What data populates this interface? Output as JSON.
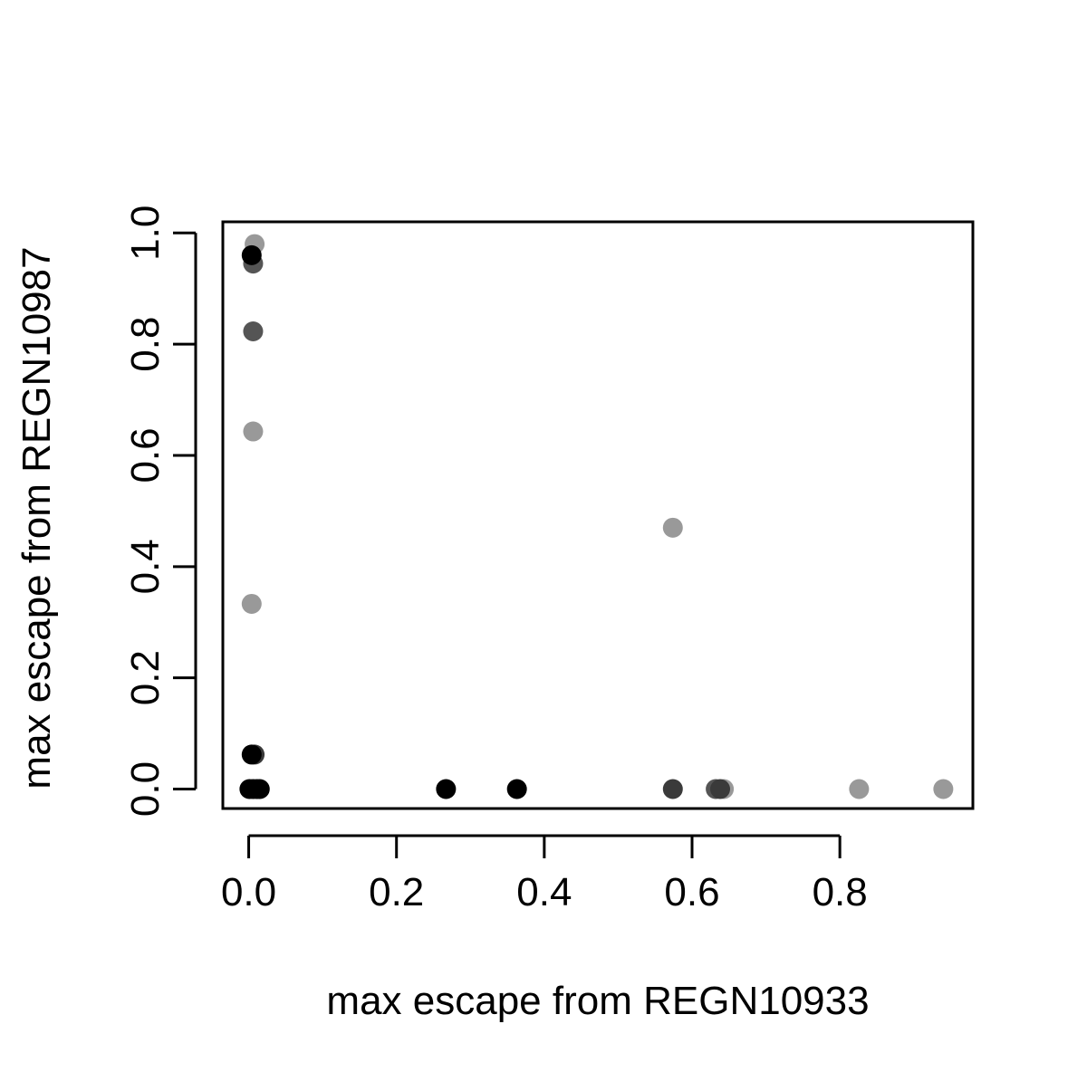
{
  "chart_data": {
    "type": "scatter",
    "title": "",
    "xlabel": "max escape from REGN10933",
    "ylabel": "max escape from REGN10987",
    "xlim": [
      -0.035,
      0.98
    ],
    "ylim": [
      -0.035,
      1.02
    ],
    "x_ticks": [
      0.0,
      0.2,
      0.4,
      0.6,
      0.8
    ],
    "x_tick_labels": [
      "0.0",
      "0.2",
      "0.4",
      "0.6",
      "0.8"
    ],
    "y_ticks": [
      0.0,
      0.2,
      0.4,
      0.6,
      0.8,
      1.0
    ],
    "y_tick_labels": [
      "0.0",
      "0.2",
      "0.4",
      "0.6",
      "0.8",
      "1.0"
    ],
    "grid": false,
    "legend": "none",
    "colors": {
      "black": "#000000",
      "dark": "#3a3a3a",
      "mid": "#555555",
      "light": "#999999"
    },
    "points": [
      {
        "x": 0.008,
        "y": 0.98,
        "color": "light"
      },
      {
        "x": 0.006,
        "y": 0.945,
        "color": "mid"
      },
      {
        "x": 0.004,
        "y": 0.96,
        "color": "black"
      },
      {
        "x": 0.006,
        "y": 0.823,
        "color": "mid"
      },
      {
        "x": 0.006,
        "y": 0.643,
        "color": "light"
      },
      {
        "x": 0.004,
        "y": 0.333,
        "color": "light"
      },
      {
        "x": 0.008,
        "y": 0.062,
        "color": "dark"
      },
      {
        "x": 0.004,
        "y": 0.062,
        "color": "black"
      },
      {
        "x": 0.001,
        "y": 0.0,
        "color": "black"
      },
      {
        "x": 0.006,
        "y": 0.0,
        "color": "black"
      },
      {
        "x": 0.011,
        "y": 0.0,
        "color": "black"
      },
      {
        "x": 0.015,
        "y": 0.0,
        "color": "black"
      },
      {
        "x": 0.267,
        "y": 0.0,
        "color": "black"
      },
      {
        "x": 0.363,
        "y": 0.0,
        "color": "black"
      },
      {
        "x": 0.574,
        "y": 0.47,
        "color": "light"
      },
      {
        "x": 0.574,
        "y": 0.0,
        "color": "dark"
      },
      {
        "x": 0.632,
        "y": 0.0,
        "color": "mid"
      },
      {
        "x": 0.643,
        "y": 0.0,
        "color": "light"
      },
      {
        "x": 0.638,
        "y": 0.0,
        "color": "dark"
      },
      {
        "x": 0.826,
        "y": 0.0,
        "color": "light"
      },
      {
        "x": 0.94,
        "y": 0.0,
        "color": "light"
      }
    ]
  }
}
